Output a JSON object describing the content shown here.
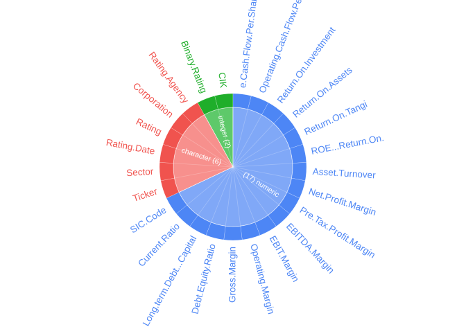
{
  "chart_data": {
    "type": "sunburst",
    "title": "",
    "groups": [
      {
        "name": "integer (2)",
        "type_label": "integer",
        "count": 2,
        "color": "#1fae2a",
        "inner_color": "#5ec96a",
        "columns": [
          "Binary.Rating",
          "CIK"
        ]
      },
      {
        "name": "character (6)",
        "type_label": "character",
        "count": 6,
        "color": "#f0534e",
        "inner_color": "#f7908d",
        "columns": [
          "Ticker",
          "Sector",
          "Rating.Date",
          "Rating",
          "Corporation",
          "Rating.Agency"
        ]
      },
      {
        "name": "(17) numeric",
        "type_label": "numeric",
        "count": 17,
        "color": "#4d86f5",
        "inner_color": "#80a8f7",
        "columns": [
          "e.Cash.Flow.Per.Share",
          "Operating.Cash.Flow.Per.Share",
          "Return.On.Investment",
          "Return.On.Assets",
          "Return.On.Tangi",
          "ROE...Return.On.",
          "Asset.Turnover",
          "Net.Profit.Margin",
          "Pre.Tax.Profit.Margin",
          "EBITDA.Margin",
          "EBIT.Margin",
          "Operating.Margin",
          "Gross.Margin",
          "Debt.Equity.Ratio",
          "Long.term.Debt...Capital",
          "Current.Ratio",
          "SIC.Code"
        ]
      }
    ]
  }
}
